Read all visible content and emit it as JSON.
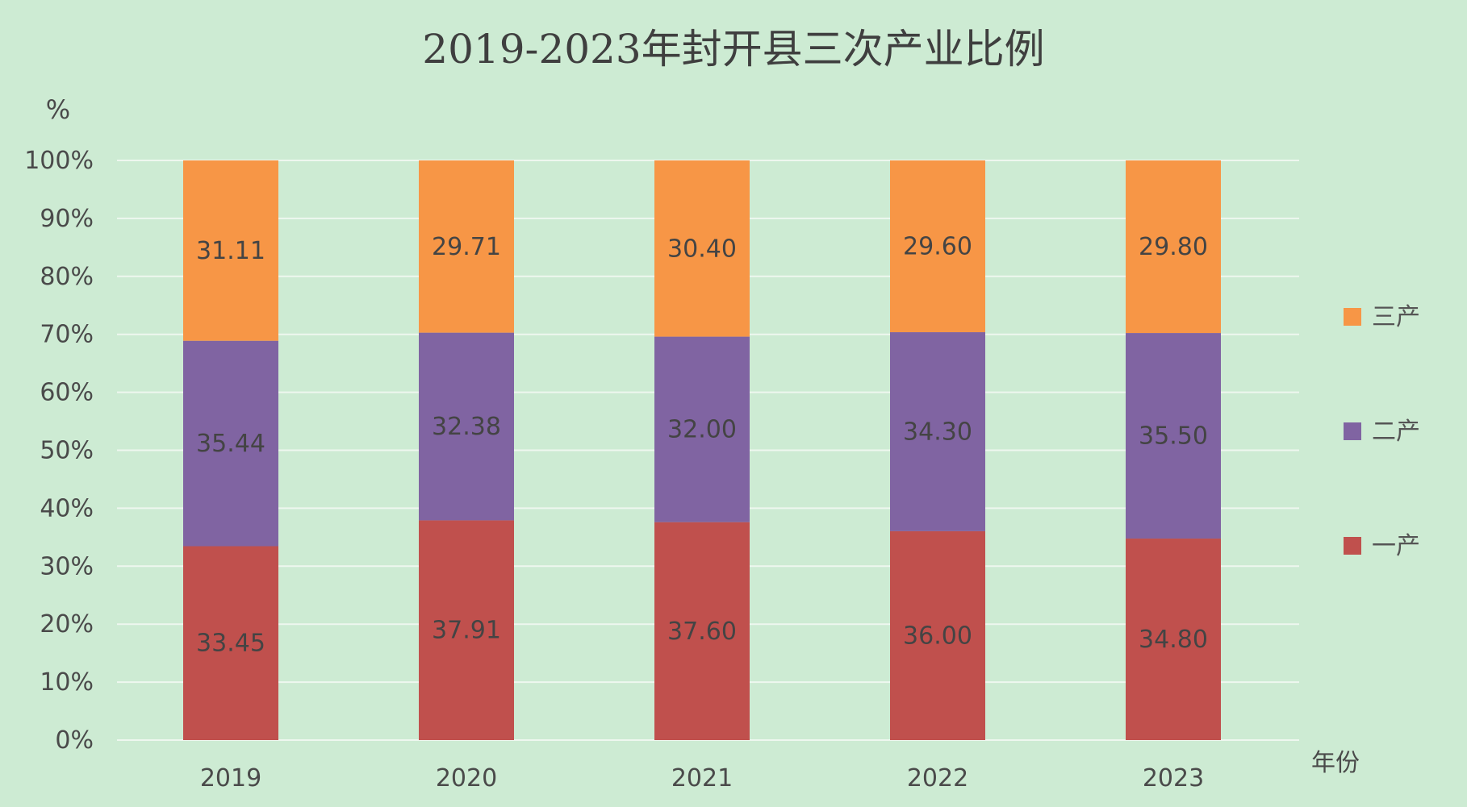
{
  "chart_data": {
    "type": "bar",
    "stacked": true,
    "percent_stacked": true,
    "title": "2019-2023年封开县三次产业比例",
    "ylabel": "%",
    "xlabel": "年份",
    "categories": [
      "2019",
      "2020",
      "2021",
      "2022",
      "2023"
    ],
    "yticks": [
      "0%",
      "10%",
      "20%",
      "30%",
      "40%",
      "50%",
      "60%",
      "70%",
      "80%",
      "90%",
      "100%"
    ],
    "ylim": [
      0,
      100
    ],
    "grid": true,
    "legend_position": "right",
    "series": [
      {
        "name": "一产",
        "color": "#c0504d",
        "values": [
          33.45,
          37.91,
          37.6,
          36.0,
          34.8
        ],
        "labels": [
          "33.45",
          "37.91",
          "37.60",
          "36.00",
          "34.80"
        ]
      },
      {
        "name": "二产",
        "color": "#8064a2",
        "values": [
          35.44,
          32.38,
          32.0,
          34.3,
          35.5
        ],
        "labels": [
          "35.44",
          "32.38",
          "32.00",
          "34.30",
          "35.50"
        ]
      },
      {
        "name": "三产",
        "color": "#f79646",
        "values": [
          31.11,
          29.71,
          30.4,
          29.6,
          29.8
        ],
        "labels": [
          "31.11",
          "29.71",
          "30.40",
          "29.60",
          "29.80"
        ]
      }
    ],
    "background": "#cdebd3",
    "gridline_color": "#eef7ef"
  }
}
